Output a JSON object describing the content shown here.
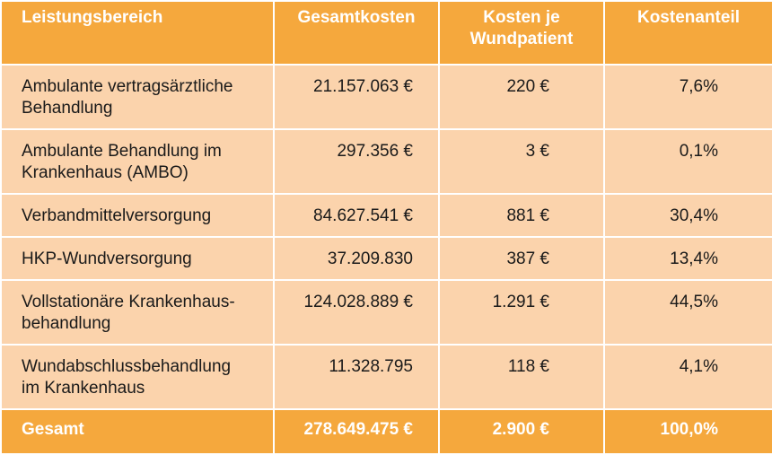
{
  "table": {
    "headers": {
      "area": "Leistungsbereich",
      "total": "Gesamtkosten",
      "per_patient_line1": "Kosten je",
      "per_patient_line2": "Wundpatient",
      "share": "Kostenanteil"
    },
    "rows": [
      {
        "area": [
          "Ambulante vertragsärztliche",
          "Behandlung"
        ],
        "total": "21.157.063 €",
        "per_patient": "220 €",
        "share": "7,6%"
      },
      {
        "area": [
          "Ambulante Behandlung im",
          "Krankenhaus (AMBO)"
        ],
        "total": "297.356 €",
        "per_patient": "3 €",
        "share": "0,1%"
      },
      {
        "area": [
          "Verbandmittelversorgung"
        ],
        "total": "84.627.541 €",
        "per_patient": "881 €",
        "share": "30,4%"
      },
      {
        "area": [
          "HKP-Wundversorgung"
        ],
        "total": "37.209.830",
        "per_patient": "387 €",
        "share": "13,4%"
      },
      {
        "area": [
          "Vollstationäre Krankenhaus-",
          "behandlung"
        ],
        "total": "124.028.889 €",
        "per_patient": "1.291 €",
        "share": "44,5%"
      },
      {
        "area": [
          "Wundabschlussbehandlung",
          "im Krankenhaus"
        ],
        "total": "11.328.795",
        "per_patient": "118 €",
        "share": "4,1%"
      }
    ],
    "footer": {
      "area": "Gesamt",
      "total": "278.649.475 €",
      "per_patient": "2.900 €",
      "share": "100,0%"
    }
  },
  "colors": {
    "header_bg": "#f5a83d",
    "row_bg": "#fbd3ac",
    "header_text": "#ffffff"
  }
}
